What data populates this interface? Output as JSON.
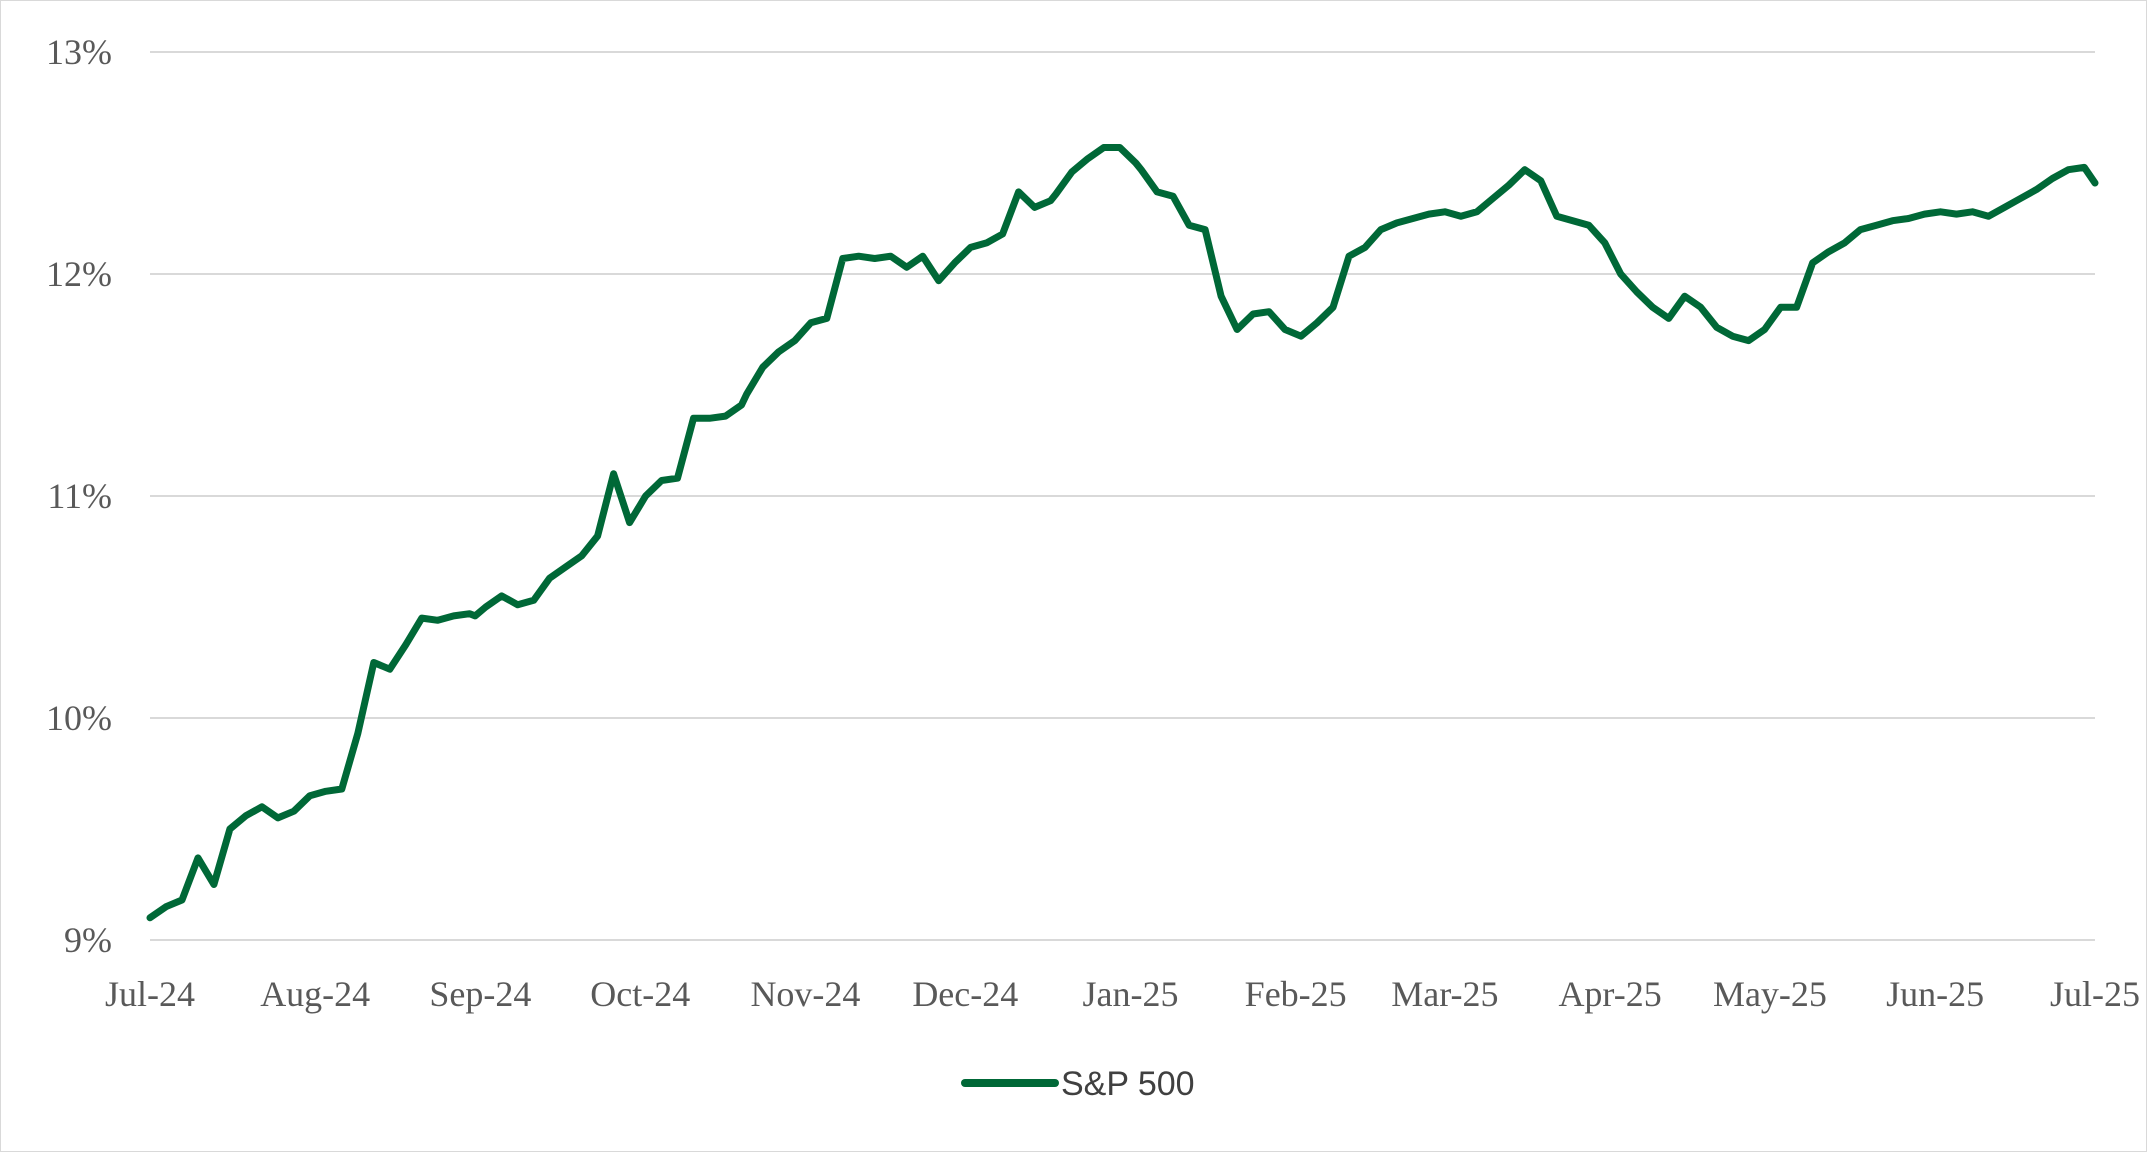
{
  "chart_data": {
    "type": "line",
    "title": "",
    "xlabel": "",
    "ylabel": "",
    "ylim": [
      9,
      13
    ],
    "y_ticks": [
      9,
      10,
      11,
      12,
      13
    ],
    "y_tick_labels": [
      "9%",
      "10%",
      "11%",
      "12%",
      "13%"
    ],
    "x_tick_labels": [
      "Jul-24",
      "Aug-24",
      "Sep-24",
      "Oct-24",
      "Nov-24",
      "Dec-24",
      "Jan-25",
      "Feb-25",
      "Mar-25",
      "Apr-25",
      "May-25",
      "Jun-25",
      "Jul-25"
    ],
    "x_tick_days": [
      0,
      31,
      62,
      92,
      123,
      153,
      184,
      215,
      243,
      274,
      304,
      335,
      365
    ],
    "grid": true,
    "legend_position": "bottom-center",
    "color": "#006837",
    "series": [
      {
        "name": "S&P 500",
        "x": [
          0,
          3,
          6,
          9,
          12,
          15,
          18,
          21,
          24,
          27,
          30,
          33,
          36,
          39,
          42,
          45,
          48,
          51,
          54,
          57,
          60,
          61,
          63,
          66,
          69,
          72,
          75,
          78,
          81,
          84,
          87,
          90,
          93,
          96,
          99,
          102,
          105,
          108,
          111,
          112,
          115,
          118,
          121,
          124,
          127,
          130,
          133,
          136,
          139,
          142,
          145,
          148,
          151,
          154,
          157,
          160,
          163,
          166,
          169,
          170,
          173,
          176,
          179,
          182,
          185,
          186,
          189,
          192,
          195,
          198,
          201,
          204,
          207,
          210,
          213,
          216,
          219,
          222,
          225,
          228,
          231,
          234,
          237,
          240,
          243,
          246,
          249,
          252,
          255,
          258,
          261,
          264,
          267,
          270,
          273,
          276,
          279,
          282,
          285,
          288,
          291,
          294,
          297,
          300,
          303,
          306,
          309,
          312,
          315,
          318,
          321,
          324,
          327,
          330,
          333,
          336,
          339,
          342,
          345,
          348,
          351,
          354,
          357,
          360,
          363,
          365
        ],
        "values": [
          9.1,
          9.15,
          9.18,
          9.37,
          9.25,
          9.5,
          9.56,
          9.6,
          9.55,
          9.58,
          9.65,
          9.67,
          9.68,
          9.93,
          10.25,
          10.22,
          10.33,
          10.45,
          10.44,
          10.46,
          10.47,
          10.46,
          10.5,
          10.55,
          10.51,
          10.53,
          10.63,
          10.68,
          10.73,
          10.82,
          11.1,
          10.88,
          11.0,
          11.07,
          11.08,
          11.35,
          11.35,
          11.36,
          11.41,
          11.46,
          11.58,
          11.65,
          11.7,
          11.78,
          11.8,
          12.07,
          12.08,
          12.07,
          12.08,
          12.03,
          12.08,
          11.97,
          12.05,
          12.12,
          12.14,
          12.18,
          12.37,
          12.3,
          12.33,
          12.36,
          12.46,
          12.52,
          12.57,
          12.57,
          12.5,
          12.47,
          12.37,
          12.35,
          12.22,
          12.2,
          11.9,
          11.75,
          11.82,
          11.83,
          11.75,
          11.72,
          11.78,
          11.85,
          12.08,
          12.12,
          12.2,
          12.23,
          12.25,
          12.27,
          12.28,
          12.26,
          12.28,
          12.34,
          12.4,
          12.47,
          12.42,
          12.26,
          12.24,
          12.22,
          12.14,
          12.0,
          11.92,
          11.85,
          11.8,
          11.9,
          11.85,
          11.76,
          11.72,
          11.7,
          11.75,
          11.85,
          11.85,
          12.05,
          12.1,
          12.14,
          12.2,
          12.22,
          12.24,
          12.25,
          12.27,
          12.28,
          12.27,
          12.28,
          12.26,
          12.3,
          12.34,
          12.38,
          12.43,
          12.47,
          12.48,
          12.41
        ]
      }
    ]
  }
}
